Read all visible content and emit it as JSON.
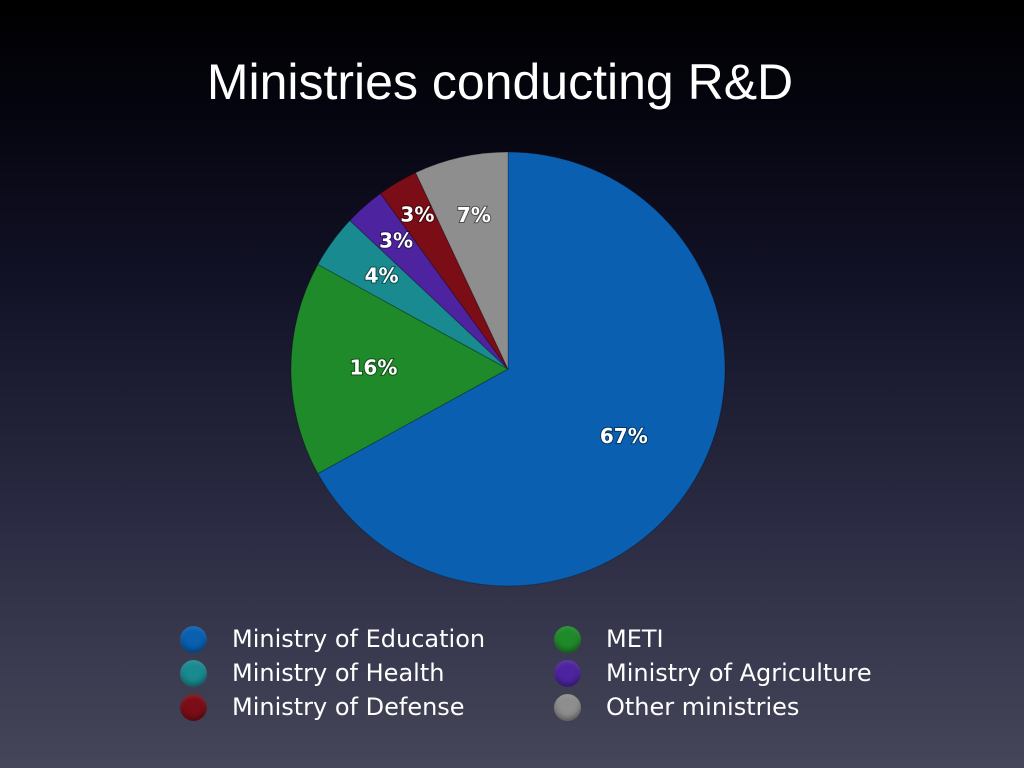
{
  "slide": {
    "title": "Ministries conducting R&D"
  },
  "chart_data": {
    "type": "pie",
    "title": "Ministries conducting R&D",
    "unit": "%",
    "legend_position": "bottom",
    "categories": [
      "Ministry of Education",
      "METI",
      "Ministry of Health",
      "Ministry of Agriculture",
      "Ministry of Defense",
      "Other ministries"
    ],
    "values": [
      67,
      16,
      4,
      3,
      3,
      7
    ],
    "labels": [
      "67%",
      "16%",
      "4%",
      "3%",
      "3%",
      "7%"
    ],
    "colors": [
      "#0a5fb0",
      "#1f8a2a",
      "#198a8f",
      "#4d23a0",
      "#7a0d16",
      "#8e8e8e"
    ]
  },
  "legend": {
    "items": [
      {
        "label": "Ministry of Education",
        "color": "#0a5fb0"
      },
      {
        "label": "METI",
        "color": "#1f8a2a"
      },
      {
        "label": "Ministry of Health",
        "color": "#198a8f"
      },
      {
        "label": "Ministry of Agriculture",
        "color": "#4d23a0"
      },
      {
        "label": "Ministry of Defense",
        "color": "#7a0d16"
      },
      {
        "label": "Other ministries",
        "color": "#8e8e8e"
      }
    ]
  }
}
